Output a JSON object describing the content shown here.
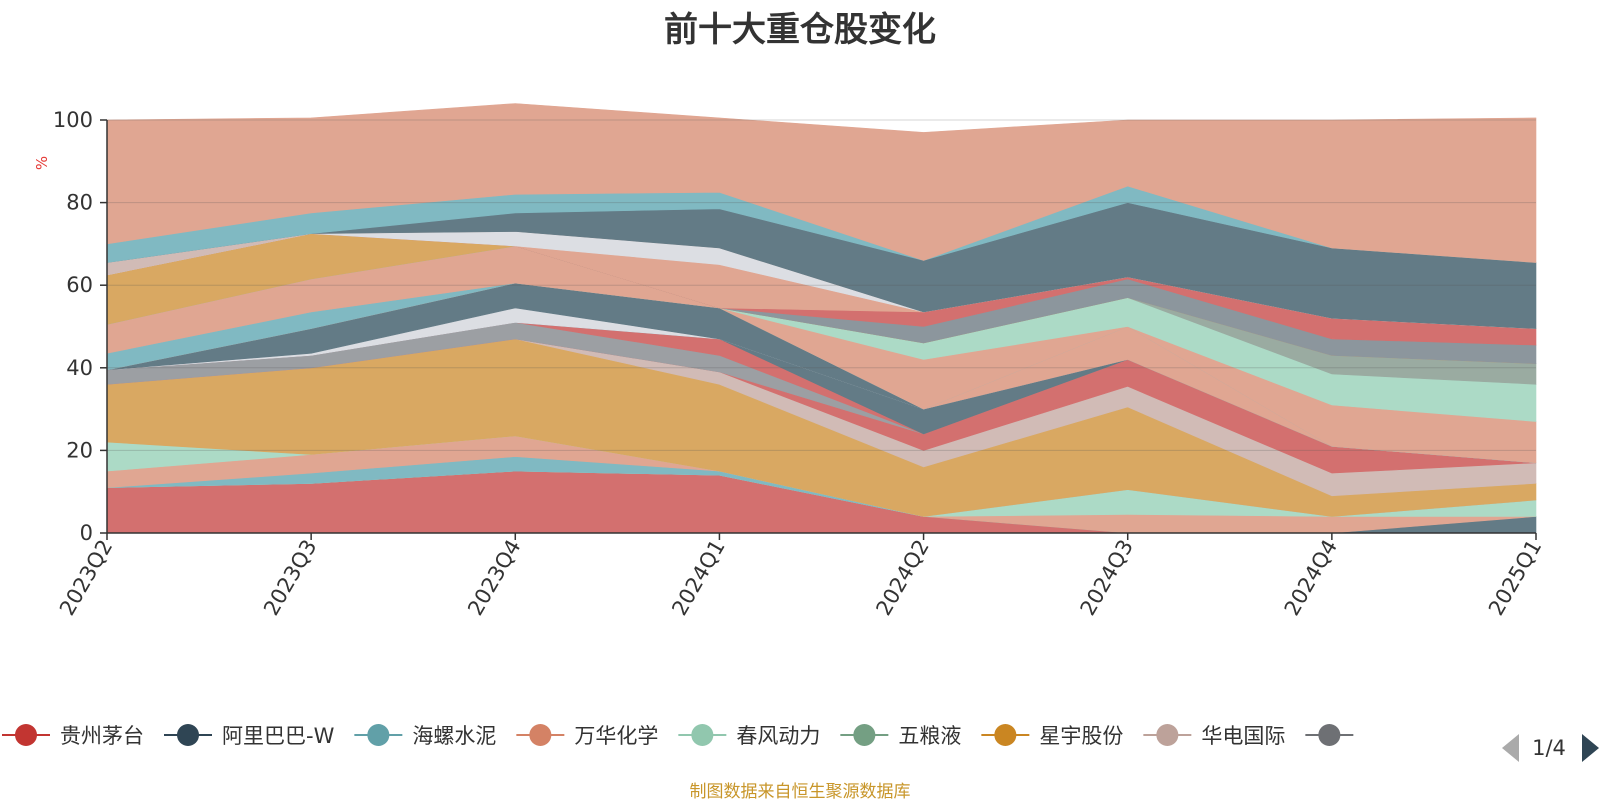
{
  "chart_data": {
    "type": "area",
    "stacked": true,
    "title": "前十大重仓股变化",
    "ylabel": "%",
    "ylim": [
      0,
      100
    ],
    "yticks": [
      0,
      20,
      40,
      60,
      80,
      100
    ],
    "grid": true,
    "legend_placement": "bottom",
    "categories": [
      "2023Q2",
      "2023Q3",
      "2023Q4",
      "2024Q1",
      "2024Q2",
      "2024Q3",
      "2024Q4",
      "2025Q1"
    ],
    "bands": [
      {
        "color": "#d3706f",
        "values": [
          11,
          12,
          15,
          14,
          4,
          0,
          0,
          0
        ]
      },
      {
        "color": "#e0a692",
        "values": [
          0,
          0,
          0,
          0,
          0,
          0,
          0,
          0
        ]
      },
      {
        "color": "#637b86",
        "values": [
          0,
          0,
          0,
          0,
          0,
          0,
          0,
          4
        ]
      },
      {
        "color": "#e0a692",
        "values": [
          0,
          0,
          0,
          0,
          0,
          4.5,
          4,
          0
        ]
      },
      {
        "color": "#acdac6",
        "values": [
          0,
          0,
          0,
          0,
          0,
          6,
          0,
          4
        ]
      },
      {
        "color": "#80b9c2",
        "values": [
          0,
          2.5,
          3.5,
          1,
          0,
          0,
          0,
          0
        ]
      },
      {
        "color": "#e0a692",
        "values": [
          4,
          4.5,
          5,
          0,
          0,
          0,
          0,
          0
        ]
      },
      {
        "color": "#acdac6",
        "values": [
          7,
          0,
          0,
          0,
          0,
          0,
          0,
          0
        ]
      },
      {
        "color": "#d9a862",
        "values": [
          14,
          21,
          23.5,
          21,
          12,
          20,
          5,
          4
        ]
      },
      {
        "color": "#d9a862",
        "values": [
          0,
          0,
          0,
          0,
          0,
          0,
          0,
          0
        ]
      },
      {
        "color": "#d1bbb6",
        "values": [
          0,
          0,
          0,
          3,
          4,
          5,
          5.5,
          5
        ]
      },
      {
        "color": "#d3706f",
        "values": [
          0,
          0,
          0,
          0,
          4,
          6.5,
          6.5,
          0
        ]
      },
      {
        "color": "#9c9fa3",
        "values": [
          3.5,
          3,
          4,
          4,
          0,
          0,
          0,
          0
        ]
      },
      {
        "color": "#d3706f",
        "values": [
          0,
          0,
          0,
          4,
          0,
          0,
          0,
          0
        ]
      },
      {
        "color": "#637b86",
        "values": [
          0,
          0,
          0,
          0,
          6,
          0,
          0,
          0
        ]
      },
      {
        "color": "#dcdee3",
        "values": [
          0,
          0.5,
          3.5,
          0,
          0,
          0,
          0,
          0
        ]
      },
      {
        "color": "#637b86",
        "values": [
          0,
          6,
          6,
          7.5,
          0,
          0,
          0,
          0
        ]
      },
      {
        "color": "#e0a692",
        "values": [
          0,
          0,
          0,
          0,
          0,
          8,
          0,
          0
        ]
      },
      {
        "color": "#80b9c2",
        "values": [
          4,
          4,
          0,
          0,
          0,
          0,
          0,
          0
        ]
      },
      {
        "color": "#e0a692",
        "values": [
          7,
          8,
          9,
          0,
          12,
          0,
          10,
          10
        ]
      },
      {
        "color": "#acdac6",
        "values": [
          0,
          0,
          0,
          0,
          4,
          7,
          7.5,
          9
        ]
      },
      {
        "color": "#9aaba1",
        "values": [
          0,
          0,
          0,
          0,
          0,
          0,
          4.5,
          5
        ]
      },
      {
        "color": "#d9a862",
        "values": [
          12,
          11,
          0,
          0,
          0,
          0,
          0,
          0
        ]
      },
      {
        "color": "#8c969d",
        "values": [
          0,
          0,
          0,
          0,
          4,
          4.5,
          4,
          4.5
        ]
      },
      {
        "color": "#d3706f",
        "values": [
          0,
          0,
          0,
          0,
          3.5,
          0.5,
          5,
          4
        ]
      },
      {
        "color": "#e0a692",
        "values": [
          0,
          0,
          0,
          10.5,
          0,
          0,
          0,
          0
        ]
      },
      {
        "color": "#dcdee3",
        "values": [
          0,
          0,
          3.5,
          4,
          0,
          0,
          0,
          0
        ]
      },
      {
        "color": "#d1bbb6",
        "values": [
          3,
          0,
          0,
          0,
          0,
          0,
          0,
          0
        ]
      },
      {
        "color": "#637b86",
        "values": [
          0,
          0,
          4.5,
          9.5,
          12.5,
          18,
          17,
          16
        ]
      },
      {
        "color": "#80b9c2",
        "values": [
          4.5,
          5,
          4.5,
          4,
          0,
          4,
          0,
          0
        ]
      },
      {
        "color": "#e0a692",
        "values": [
          30,
          23,
          22,
          18,
          31,
          16,
          31,
          35
        ]
      }
    ],
    "legend": [
      {
        "name": "贵州茅台",
        "color": "#c23531"
      },
      {
        "name": "阿里巴巴-W",
        "color": "#2f4554"
      },
      {
        "name": "海螺水泥",
        "color": "#61a0a8"
      },
      {
        "name": "万华化学",
        "color": "#d48265"
      },
      {
        "name": "春风动力",
        "color": "#91c7ae"
      },
      {
        "name": "五粮液",
        "color": "#749f83"
      },
      {
        "name": "星宇股份",
        "color": "#ca8622"
      },
      {
        "name": "华电国际",
        "color": "#bda29a"
      },
      {
        "name": "",
        "color": "#6e7074"
      }
    ],
    "legend_page": "1/4",
    "note": "制图数据来自恒生聚源数据库"
  }
}
